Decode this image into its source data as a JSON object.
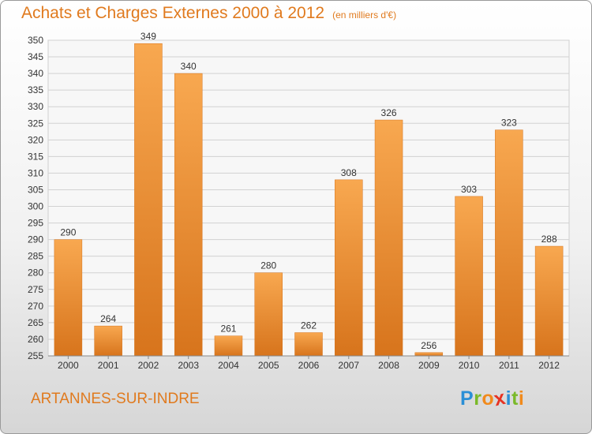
{
  "title": "Achats et Charges Externes 2000 à 2012",
  "subtitle": "(en milliers d'€)",
  "commune": "ARTANNES-SUR-INDRE",
  "logo": {
    "letters": [
      "P",
      "r",
      "o",
      "x",
      "i",
      "t",
      "i"
    ],
    "colors": [
      "#2a8fd6",
      "#7ab929",
      "#f18a1c",
      "#e63323",
      "#2a8fd6",
      "#7ab929",
      "#f18a1c"
    ]
  },
  "colors": {
    "bar": "#f0862a",
    "bar_light": "#f8a850",
    "bar_dark": "#d7741c",
    "title": "#e07a1e"
  },
  "chart_data": {
    "type": "bar",
    "title": "Achats et Charges Externes 2000 à 2012",
    "subtitle": "(en milliers d'€)",
    "categories": [
      "2000",
      "2001",
      "2002",
      "2003",
      "2004",
      "2005",
      "2006",
      "2007",
      "2008",
      "2009",
      "2010",
      "2011",
      "2012"
    ],
    "values": [
      290,
      264,
      349,
      340,
      261,
      280,
      262,
      308,
      326,
      256,
      303,
      323,
      288
    ],
    "ylim": [
      255,
      350
    ],
    "yticks": [
      255,
      260,
      265,
      270,
      275,
      280,
      285,
      290,
      295,
      300,
      305,
      310,
      315,
      320,
      325,
      330,
      335,
      340,
      345,
      350
    ],
    "xlabel": "",
    "ylabel": "",
    "grid": true,
    "data_labels": true
  }
}
